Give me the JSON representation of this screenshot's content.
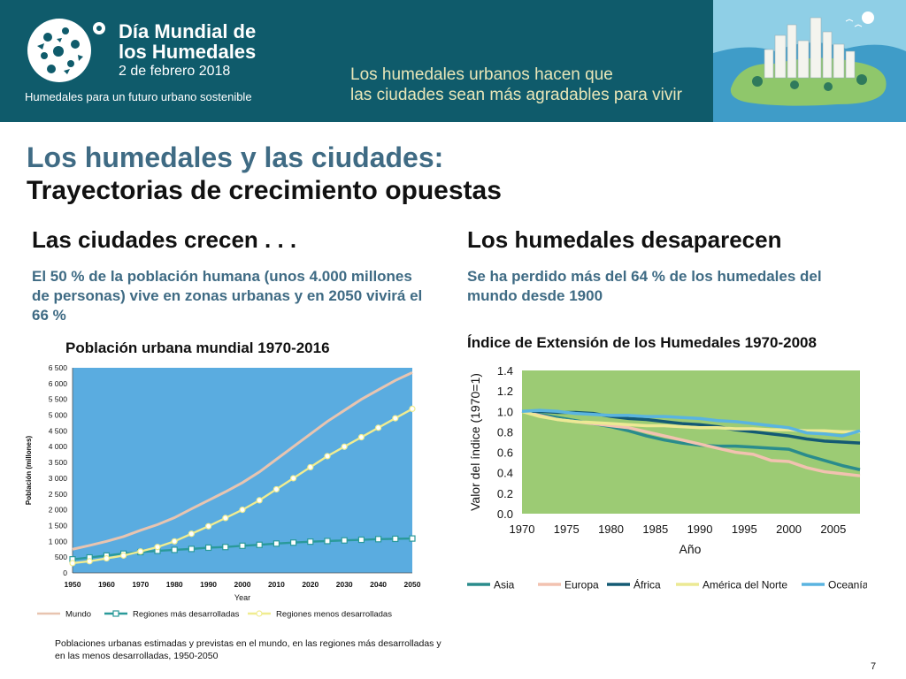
{
  "banner": {
    "brand_title_1": "Día Mundial de",
    "brand_title_2": "los Humedales",
    "brand_date": "2 de febrero 2018",
    "tagline": "Humedales para un futuro urbano sostenible",
    "message_1": "Los humedales urbanos hacen que",
    "message_2": "las ciudades sean más agradables para vivir",
    "colors": {
      "background": "#0f5b6b",
      "message": "#e8e6b8"
    }
  },
  "slide": {
    "title": "Los humedales y las ciudades:",
    "subtitle": "Trayectorias de crecimiento opuestas",
    "left_heading": "Las ciudades crecen . . .",
    "left_text": "El 50 % de la población humana (unos 4.000 millones de personas) vive en zonas urbanas y en 2050 vivirá el 66 %",
    "right_heading": "Los humedales desaparecen",
    "right_text": "Se ha perdido más del 64 % de los humedales del mundo desde 1900",
    "caption": "Poblaciones urbanas estimadas y previstas en el mundo, en las regiones más desarrolladas y en las menos desarrolladas, 1950-2050",
    "page_number": "7"
  },
  "chart_data": [
    {
      "type": "line",
      "title": "Población urbana mundial 1970-2016",
      "xlabel": "Year",
      "ylabel": "Población (millones)",
      "x": [
        1950,
        1955,
        1960,
        1965,
        1970,
        1975,
        1980,
        1985,
        1990,
        1995,
        2000,
        2005,
        2010,
        2015,
        2020,
        2025,
        2030,
        2035,
        2040,
        2045,
        2050
      ],
      "xticks": [
        "1950",
        "1960",
        "1970",
        "1980",
        "1990",
        "2000",
        "2010",
        "2020",
        "2030",
        "2040",
        "2050"
      ],
      "yticks": [
        "0",
        "500",
        "1 000",
        "1 500",
        "2 000",
        "2 500",
        "3 000",
        "3 500",
        "4 000",
        "4 500",
        "5 000",
        "5 500",
        "6 000",
        "6 500"
      ],
      "xlim": [
        1950,
        2050
      ],
      "ylim": [
        0,
        6500
      ],
      "plot_background": "#5aace0",
      "series": [
        {
          "name": "Mundo",
          "color": "#e8c4b0",
          "marker": "none",
          "values": [
            750,
            870,
            1000,
            1150,
            1350,
            1530,
            1750,
            2030,
            2300,
            2570,
            2860,
            3200,
            3600,
            4000,
            4400,
            4800,
            5150,
            5500,
            5800,
            6100,
            6350
          ]
        },
        {
          "name": "Regiones más desarrolladas",
          "color": "#2a9a9a",
          "marker": "square",
          "values": [
            430,
            490,
            550,
            610,
            660,
            700,
            730,
            760,
            800,
            820,
            860,
            890,
            930,
            960,
            990,
            1010,
            1030,
            1050,
            1070,
            1080,
            1090
          ]
        },
        {
          "name": "Regiones menos desarrolladas",
          "color": "#f0ec90",
          "marker": "circle",
          "values": [
            310,
            370,
            460,
            550,
            680,
            820,
            1000,
            1240,
            1480,
            1740,
            2000,
            2300,
            2650,
            3000,
            3350,
            3700,
            4000,
            4300,
            4600,
            4900,
            5200
          ]
        }
      ]
    },
    {
      "type": "line",
      "title": "Índice de Extensión de los Humedales 1970-2008",
      "xlabel": "Año",
      "ylabel": "Valor del índice (1970=1)",
      "x": [
        1970,
        1972,
        1974,
        1976,
        1978,
        1980,
        1982,
        1984,
        1986,
        1988,
        1990,
        1992,
        1994,
        1996,
        1998,
        2000,
        2002,
        2004,
        2006,
        2008
      ],
      "xticks": [
        "1970",
        "1975",
        "1980",
        "1985",
        "1990",
        "1995",
        "2000",
        "2005"
      ],
      "yticks": [
        "0.0",
        "0.2",
        "0.4",
        "0.6",
        "0.8",
        "1.0",
        "1.2",
        "1.4"
      ],
      "xlim": [
        1970,
        2008
      ],
      "ylim": [
        0,
        1.4
      ],
      "plot_background": "#9ccb74",
      "series": [
        {
          "name": "Asia",
          "color": "#2a8c8c",
          "values": [
            1.0,
            0.97,
            0.94,
            0.91,
            0.88,
            0.85,
            0.81,
            0.76,
            0.72,
            0.69,
            0.67,
            0.66,
            0.66,
            0.65,
            0.64,
            0.63,
            0.57,
            0.52,
            0.47,
            0.43
          ]
        },
        {
          "name": "Europa",
          "color": "#f2c2b0",
          "values": [
            1.0,
            0.96,
            0.92,
            0.9,
            0.88,
            0.86,
            0.84,
            0.8,
            0.76,
            0.72,
            0.68,
            0.64,
            0.6,
            0.58,
            0.52,
            0.51,
            0.45,
            0.41,
            0.39,
            0.37
          ]
        },
        {
          "name": "África",
          "color": "#145a74",
          "values": [
            1.0,
            1.0,
            0.99,
            0.99,
            0.98,
            0.95,
            0.93,
            0.92,
            0.9,
            0.88,
            0.87,
            0.85,
            0.82,
            0.8,
            0.78,
            0.76,
            0.73,
            0.71,
            0.7,
            0.69
          ]
        },
        {
          "name": "América del Norte",
          "color": "#ece994",
          "values": [
            1.0,
            0.95,
            0.92,
            0.9,
            0.89,
            0.88,
            0.87,
            0.86,
            0.86,
            0.85,
            0.84,
            0.84,
            0.83,
            0.83,
            0.82,
            0.82,
            0.81,
            0.81,
            0.8,
            0.8
          ]
        },
        {
          "name": "Oceanía",
          "color": "#5ab4e0",
          "values": [
            1.0,
            1.01,
            1.0,
            0.98,
            0.97,
            0.96,
            0.96,
            0.95,
            0.95,
            0.94,
            0.93,
            0.91,
            0.9,
            0.88,
            0.86,
            0.84,
            0.79,
            0.78,
            0.76,
            0.81
          ]
        }
      ]
    }
  ]
}
